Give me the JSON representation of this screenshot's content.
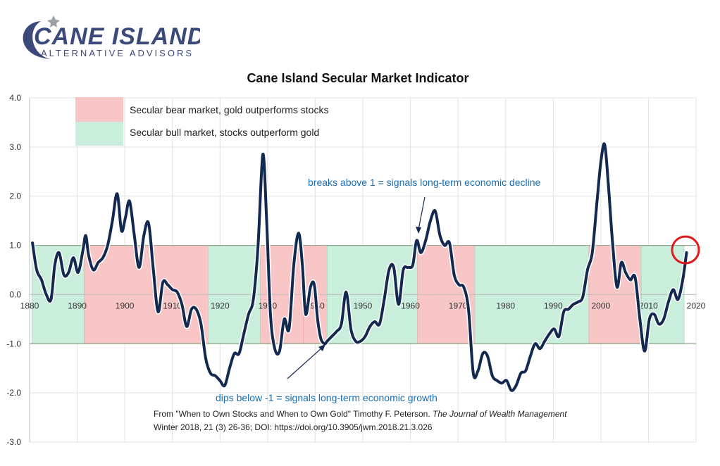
{
  "logo": {
    "name": "CANE ISLAND",
    "tagline": "ALTERNATIVE ADVISORS"
  },
  "colors": {
    "bear": "#f8c6c6",
    "bull": "#c9eedb",
    "line": "#14294f",
    "annotation": "#1a6db0",
    "circle": "#e0191b"
  },
  "legend": {
    "bear_label": "Secular bear market, gold outperforms stocks",
    "bull_label": "Secular bull market, stocks outperform gold"
  },
  "annotations": {
    "above": "breaks above 1 = signals long-term economic decline",
    "below": "dips below  -1 = signals long-term economic growth"
  },
  "source": {
    "line1_plain": "From \"When to Own Stocks and When to Own Gold\"  Timothy F. Peterson.  ",
    "line1_italic": "The Journal of Wealth Management",
    "line2": "Winter 2018, 21 (3) 26-36; DOI: https://doi.org/10.3905/jwm.2018.21.3.026"
  },
  "chart_data": {
    "type": "line",
    "title": "Cane Island Secular Market Indicator",
    "xlabel": "",
    "ylabel": "",
    "xlim": [
      1880,
      2020
    ],
    "ylim": [
      -3,
      4
    ],
    "x_ticks": [
      1880,
      1890,
      1900,
      1910,
      1920,
      1930,
      1940,
      1950,
      1960,
      1970,
      1980,
      1990,
      2000,
      2010,
      2020
    ],
    "x_tick_labels": [
      "1880",
      "1890",
      "1900",
      "1910",
      "1920",
      "1930",
      "1940",
      "1950",
      "1960",
      "1970",
      "1980",
      "1990",
      "2000",
      "2010",
      "2020"
    ],
    "y_ticks": [
      4,
      3,
      2,
      1,
      0,
      -1,
      -2,
      -3
    ],
    "y_tick_labels": [
      "4.0",
      "3.0",
      "2.0",
      "1.0",
      "0.0",
      "-1.0",
      "-2.0",
      "-3.0"
    ],
    "threshold_lines": [
      1,
      -1
    ],
    "regimes": [
      {
        "type": "bull",
        "start": 1880.5,
        "end": 1891.5
      },
      {
        "type": "bear",
        "start": 1891.5,
        "end": 1917.5
      },
      {
        "type": "bull",
        "start": 1917.5,
        "end": 1928.5
      },
      {
        "type": "bear",
        "start": 1928.5,
        "end": 1937.5
      },
      {
        "type": "bear",
        "start": 1937.5,
        "end": 1942.5
      },
      {
        "type": "bull",
        "start": 1942.5,
        "end": 1961.5
      },
      {
        "type": "bear",
        "start": 1961.5,
        "end": 1973.5
      },
      {
        "type": "bull",
        "start": 1973.5,
        "end": 1997.5
      },
      {
        "type": "bear",
        "start": 1997.5,
        "end": 2008.5
      },
      {
        "type": "bull",
        "start": 2008.5,
        "end": 2017.5
      }
    ],
    "series": [
      {
        "x": [
          1880.6,
          1881.5,
          1882.5,
          1883.5,
          1884.5,
          1885.3,
          1886.2,
          1887.2,
          1888.2,
          1889.2,
          1890.2,
          1891.2,
          1891.8,
          1892.4,
          1893.4,
          1894.4,
          1895.4,
          1896.4,
          1897.4,
          1898.4,
          1899.3,
          1900.1,
          1901.0,
          1902.0,
          1903.0,
          1904.0,
          1905.0,
          1906.0,
          1907.0,
          1908.0,
          1909.0,
          1910.0,
          1911.0,
          1912.0,
          1913.0,
          1914.0,
          1915.0,
          1916.0,
          1917.0,
          1918.0,
          1919.0,
          1920.0,
          1921.0,
          1922.0,
          1923.0,
          1924.0,
          1925.0,
          1926.0,
          1927.0,
          1928.0,
          1929.0,
          1929.8,
          1930.6,
          1931.5,
          1932.5,
          1933.5,
          1934.5,
          1935.5,
          1936.5,
          1937.3,
          1938.0,
          1939.0,
          1939.8,
          1940.5,
          1941.2,
          1942.0,
          1942.5,
          1943.5,
          1944.5,
          1945.5,
          1946.5,
          1947.5,
          1948.5,
          1949.5,
          1950.5,
          1951.5,
          1952.5,
          1953.5,
          1954.5,
          1955.5,
          1956.5,
          1957.5,
          1958.5,
          1959.5,
          1960.5,
          1961.3,
          1962.2,
          1963.2,
          1964.2,
          1965.2,
          1966.2,
          1967.2,
          1968.2,
          1969.2,
          1970.2,
          1971.2,
          1972.2,
          1973.2,
          1974.2,
          1975.2,
          1976.2,
          1977.2,
          1978.2,
          1979.2,
          1980.2,
          1981.2,
          1982.2,
          1983.2,
          1984.2,
          1985.2,
          1986.2,
          1987.2,
          1988.2,
          1989.2,
          1990.2,
          1991.2,
          1992.2,
          1993.2,
          1994.2,
          1995.2,
          1996.2,
          1997.2,
          1998.2,
          1999.2,
          2000.0,
          2000.8,
          2001.6,
          2002.5,
          2003.4,
          2004.3,
          2005.2,
          2006.2,
          2007.2,
          2008.2,
          2009.2,
          2010.2,
          2011.2,
          2012.2,
          2013.2,
          2014.2,
          2015.2,
          2016.2,
          2017.2,
          2018.0
        ],
        "y": [
          1.05,
          0.5,
          0.3,
          0.0,
          -0.1,
          0.6,
          0.85,
          0.4,
          0.45,
          0.75,
          0.45,
          0.9,
          1.2,
          0.8,
          0.5,
          0.65,
          0.75,
          1.0,
          1.5,
          2.05,
          1.3,
          1.55,
          1.9,
          1.2,
          0.55,
          1.2,
          1.45,
          0.5,
          -0.35,
          0.25,
          0.2,
          0.1,
          0.05,
          -0.2,
          -0.65,
          -0.3,
          -0.3,
          -0.6,
          -1.3,
          -1.6,
          -1.65,
          -1.75,
          -1.85,
          -1.5,
          -1.2,
          -1.2,
          -0.8,
          -0.4,
          -0.1,
          1.0,
          2.85,
          1.5,
          -0.4,
          -1.1,
          -1.15,
          -0.5,
          -0.7,
          0.6,
          1.25,
          0.6,
          -0.4,
          0.15,
          0.2,
          -0.5,
          -0.9,
          -1.0,
          -0.95,
          -0.85,
          -0.75,
          -0.6,
          0.05,
          -0.7,
          -0.95,
          -0.95,
          -0.85,
          -0.65,
          -0.55,
          -0.6,
          -0.1,
          0.5,
          0.55,
          -0.2,
          0.5,
          0.55,
          0.6,
          1.1,
          0.85,
          1.1,
          1.5,
          1.7,
          1.2,
          1.0,
          1.05,
          0.4,
          0.2,
          0.15,
          -0.3,
          -1.6,
          -1.55,
          -1.2,
          -1.25,
          -1.65,
          -1.75,
          -1.8,
          -1.75,
          -1.95,
          -1.85,
          -1.6,
          -1.55,
          -1.25,
          -1.0,
          -1.1,
          -0.95,
          -0.8,
          -0.7,
          -0.85,
          -0.35,
          -0.3,
          -0.2,
          -0.15,
          -0.05,
          0.5,
          0.85,
          1.9,
          2.7,
          3.05,
          2.2,
          1.0,
          0.15,
          0.65,
          0.45,
          0.3,
          0.35,
          -0.5,
          -1.15,
          -0.5,
          -0.4,
          -0.6,
          -0.5,
          -0.15,
          0.1,
          -0.1,
          0.3,
          0.85
        ]
      }
    ]
  }
}
